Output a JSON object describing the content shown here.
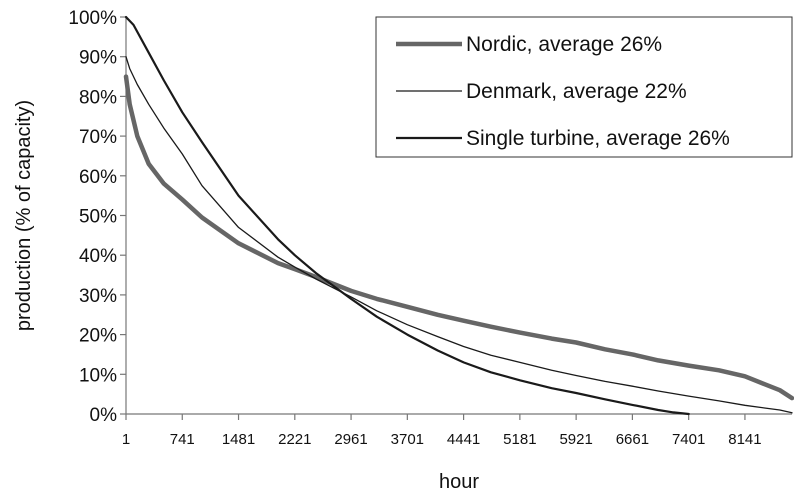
{
  "chart_data": {
    "type": "line",
    "title": "",
    "xlabel": "hour",
    "ylabel": "production (% of capacity)",
    "xlim": [
      1,
      8760
    ],
    "ylim": [
      0,
      100
    ],
    "x_ticks": [
      1,
      741,
      1481,
      2221,
      2961,
      3701,
      4441,
      5181,
      5921,
      6661,
      7401,
      8141
    ],
    "x_tick_labels": [
      "1",
      "741",
      "1481",
      "2221",
      "2961",
      "3701",
      "4441",
      "5181",
      "5921",
      "6661",
      "7401",
      "8141"
    ],
    "y_ticks": [
      0,
      10,
      20,
      30,
      40,
      50,
      60,
      70,
      80,
      90,
      100
    ],
    "y_tick_labels": [
      "0%",
      "10%",
      "20%",
      "30%",
      "40%",
      "50%",
      "60%",
      "70%",
      "80%",
      "90%",
      "100%"
    ],
    "grid": false,
    "legend": {
      "placement": "top-right"
    },
    "series": [
      {
        "name": "Nordic, average 26%",
        "color": "#666666",
        "style": "thick",
        "x": [
          1,
          50,
          150,
          300,
          500,
          741,
          1000,
          1481,
          2000,
          2221,
          2500,
          2961,
          3300,
          3701,
          4100,
          4441,
          4800,
          5181,
          5600,
          5921,
          6300,
          6661,
          7000,
          7401,
          7800,
          8141,
          8400,
          8600,
          8760
        ],
        "y": [
          85,
          78,
          70,
          63,
          58,
          54,
          49.5,
          43,
          38,
          36.5,
          34.5,
          31,
          29,
          27,
          25,
          23.5,
          22,
          20.5,
          19,
          18,
          16.3,
          15,
          13.5,
          12.2,
          11,
          9.5,
          7.5,
          6,
          4
        ]
      },
      {
        "name": "Denmark, average 22%",
        "color": "#1a1a1a",
        "style": "thin",
        "x": [
          1,
          50,
          150,
          300,
          500,
          741,
          1000,
          1481,
          2000,
          2221,
          2500,
          2961,
          3300,
          3701,
          4100,
          4441,
          4800,
          5181,
          5600,
          5921,
          6300,
          6661,
          7000,
          7401,
          7800,
          8141,
          8400,
          8600,
          8760
        ],
        "y": [
          90,
          87,
          83,
          78,
          72,
          65.5,
          57.5,
          47,
          39.5,
          37,
          34,
          29.5,
          26,
          22.5,
          19.5,
          17,
          14.8,
          13,
          11,
          9.7,
          8.2,
          7,
          5.8,
          4.5,
          3.3,
          2.2,
          1.5,
          1,
          0.3
        ]
      },
      {
        "name": "Single turbine, average 26%",
        "color": "#1a1a1a",
        "style": "medium",
        "x": [
          1,
          100,
          300,
          500,
          741,
          1000,
          1481,
          2000,
          2221,
          2500,
          2961,
          3300,
          3701,
          4100,
          4441,
          4800,
          5181,
          5600,
          5921,
          6300,
          6661,
          7000,
          7200,
          7401
        ],
        "y": [
          100,
          98,
          91,
          84,
          76,
          68.5,
          55,
          44,
          40,
          35.5,
          29,
          24.5,
          20,
          16,
          13,
          10.5,
          8.5,
          6.5,
          5.3,
          3.7,
          2.3,
          1,
          0.4,
          0
        ]
      }
    ]
  }
}
